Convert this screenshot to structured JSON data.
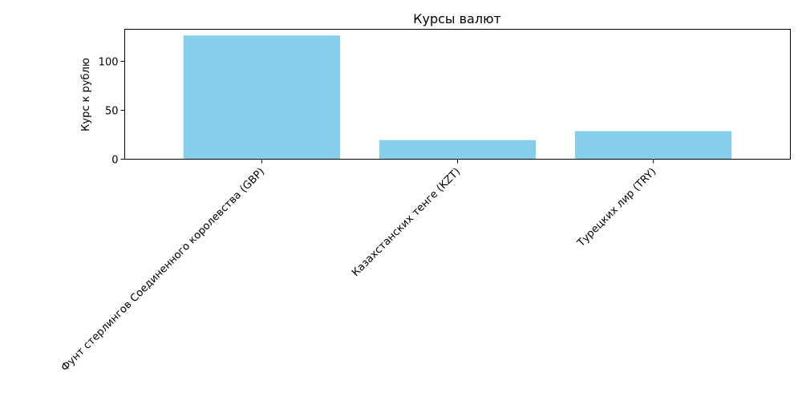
{
  "chart_data": {
    "type": "bar",
    "title": "Курсы валют",
    "xlabel": "",
    "ylabel": "Курс к рублю",
    "categories": [
      "Фунт стерлингов Соединенного королевства (GBP)",
      "Казахстанских тенге (KZT)",
      "Турецких лир (TRY)"
    ],
    "values": [
      126.5,
      19.5,
      28.7
    ],
    "ylim": [
      0,
      132.8
    ],
    "yticks": [
      0,
      50,
      100
    ],
    "ytick_labels": [
      "0",
      "50",
      "100"
    ],
    "bar_color": "#87ceeb",
    "grid": false,
    "legend": "none"
  }
}
